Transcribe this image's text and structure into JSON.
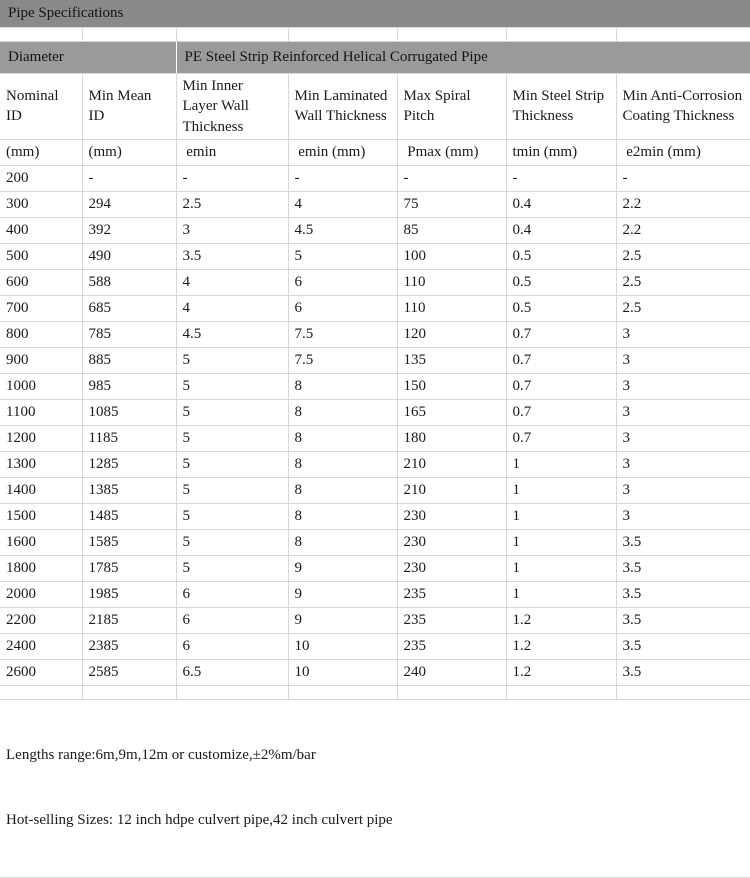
{
  "title": "Pipe Specifications",
  "table": {
    "group_headers": [
      {
        "label": "Diameter"
      },
      {
        "label": "PE Steel Strip Reinforced Helical Corrugated Pipe"
      }
    ],
    "columns": [
      {
        "name": "Nominal ID",
        "unit": "(mm)"
      },
      {
        "name": "Min Mean ID",
        "unit": "(mm)"
      },
      {
        "name": "Min Inner Layer Wall Thickness",
        "unit": " emin"
      },
      {
        "name": "Min Laminated Wall Thickness",
        "unit": " emin (mm)"
      },
      {
        "name": "Max Spiral Pitch",
        "unit": " Pmax (mm)"
      },
      {
        "name": "Min Steel Strip Thickness",
        "unit": "tmin (mm)"
      },
      {
        "name": "Min Anti-Corrosion Coating Thickness",
        "unit": " e2min (mm)"
      }
    ],
    "rows": [
      [
        "200",
        "-",
        "-",
        "-",
        "-",
        "-",
        "-"
      ],
      [
        "300",
        "294",
        "2.5",
        "4",
        "75",
        "0.4",
        "2.2"
      ],
      [
        "400",
        "392",
        "3",
        "4.5",
        "85",
        "0.4",
        "2.2"
      ],
      [
        "500",
        "490",
        "3.5",
        "5",
        "100",
        "0.5",
        "2.5"
      ],
      [
        "600",
        "588",
        "4",
        "6",
        "110",
        "0.5",
        "2.5"
      ],
      [
        "700",
        "685",
        "4",
        "6",
        "110",
        "0.5",
        "2.5"
      ],
      [
        "800",
        "785",
        "4.5",
        "7.5",
        "120",
        "0.7",
        "3"
      ],
      [
        "900",
        "885",
        "5",
        "7.5",
        "135",
        "0.7",
        "3"
      ],
      [
        "1000",
        "985",
        "5",
        "8",
        "150",
        "0.7",
        "3"
      ],
      [
        "1100",
        "1085",
        "5",
        "8",
        "165",
        "0.7",
        "3"
      ],
      [
        "1200",
        "1185",
        "5",
        "8",
        "180",
        "0.7",
        "3"
      ],
      [
        "1300",
        "1285",
        "5",
        "8",
        "210",
        "1",
        "3"
      ],
      [
        "1400",
        "1385",
        "5",
        "8",
        "210",
        "1",
        "3"
      ],
      [
        "1500",
        "1485",
        "5",
        "8",
        "230",
        "1",
        "3"
      ],
      [
        "1600",
        "1585",
        "5",
        "8",
        "230",
        "1",
        "3.5"
      ],
      [
        "1800",
        "1785",
        "5",
        "9",
        "230",
        "1",
        "3.5"
      ],
      [
        "2000",
        "1985",
        "6",
        "9",
        "235",
        "1",
        "3.5"
      ],
      [
        "2200",
        "2185",
        "6",
        "9",
        "235",
        "1.2",
        "3.5"
      ],
      [
        "2400",
        "2385",
        "6",
        "10",
        "235",
        "1.2",
        "3.5"
      ],
      [
        "2600",
        "2585",
        "6.5",
        "10",
        "240",
        "1.2",
        "3.5"
      ]
    ],
    "footer": {
      "line1": "Lengths range:6m,9m,12m or customize,±2%m/bar",
      "line2": "Hot-selling Sizes: 12 inch hdpe culvert pipe,42 inch culvert pipe"
    }
  },
  "colors": {
    "title_bar_bg": "#8a8a8a",
    "section_bar_bg": "#9a9a9a",
    "border": "#d8d8d8",
    "text": "#1a1a1a"
  }
}
